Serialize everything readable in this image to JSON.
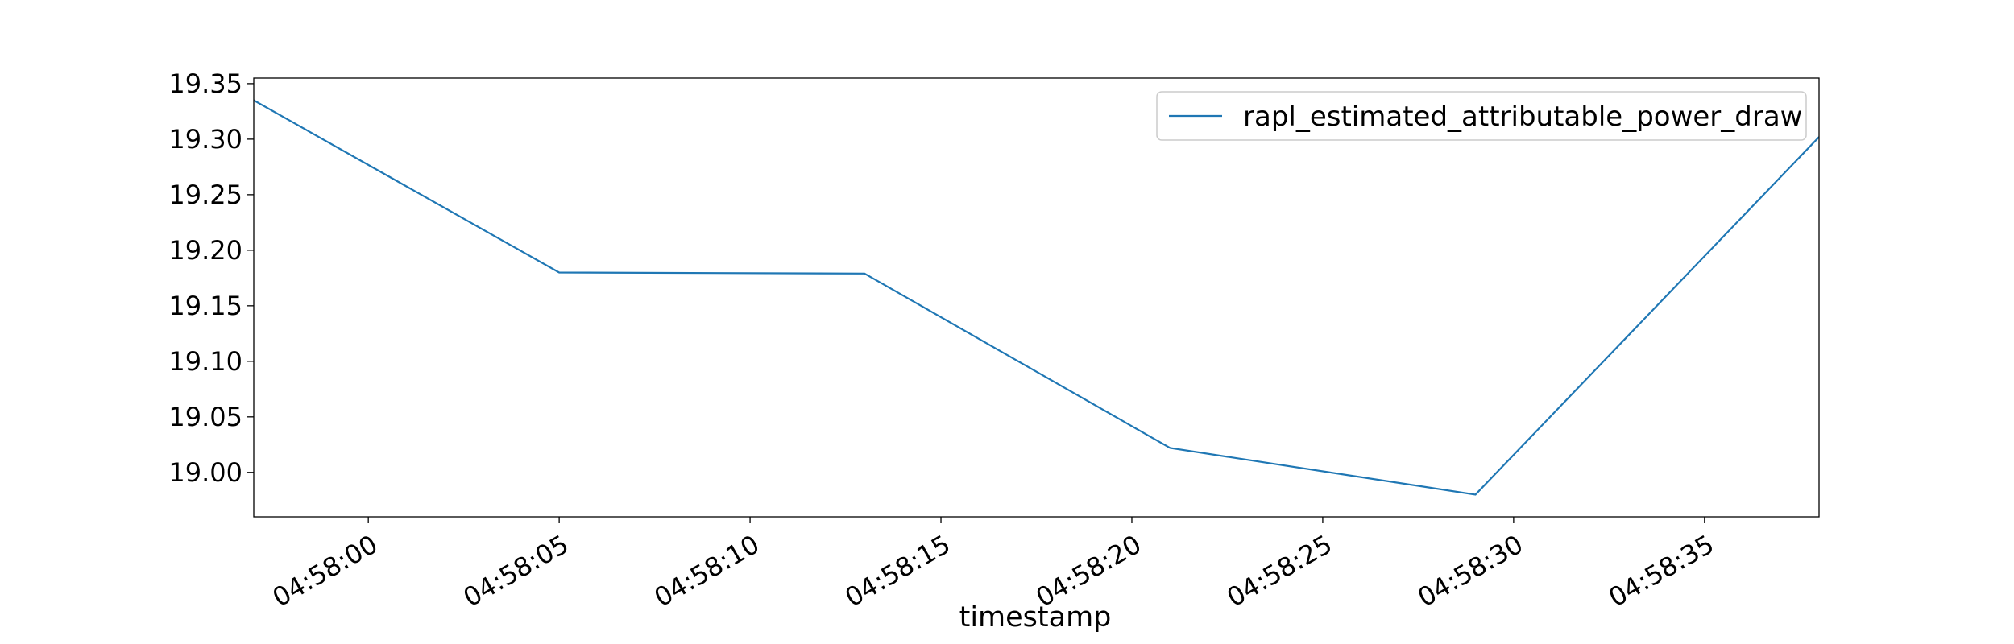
{
  "chart_data": {
    "type": "line",
    "title": "",
    "xlabel": "timestamp",
    "ylabel": "",
    "x_unit": "time",
    "x": [
      "04:57:57",
      "04:58:05",
      "04:58:13",
      "04:58:21",
      "04:58:29",
      "04:58:38"
    ],
    "series": [
      {
        "name": "rapl_estimated_attributable_power_draw",
        "color": "#1f77b4",
        "values": [
          19.335,
          19.18,
          19.179,
          19.022,
          18.98,
          19.302
        ]
      }
    ],
    "xlim": [
      "04:57:57",
      "04:58:38"
    ],
    "ylim": [
      18.96,
      19.355
    ],
    "x_ticks": [
      "04:58:00",
      "04:58:05",
      "04:58:10",
      "04:58:15",
      "04:58:20",
      "04:58:25",
      "04:58:30",
      "04:58:35"
    ],
    "y_ticks": [
      "19.00",
      "19.05",
      "19.10",
      "19.15",
      "19.20",
      "19.25",
      "19.30",
      "19.35"
    ],
    "legend_position": "top-right",
    "grid": false
  }
}
